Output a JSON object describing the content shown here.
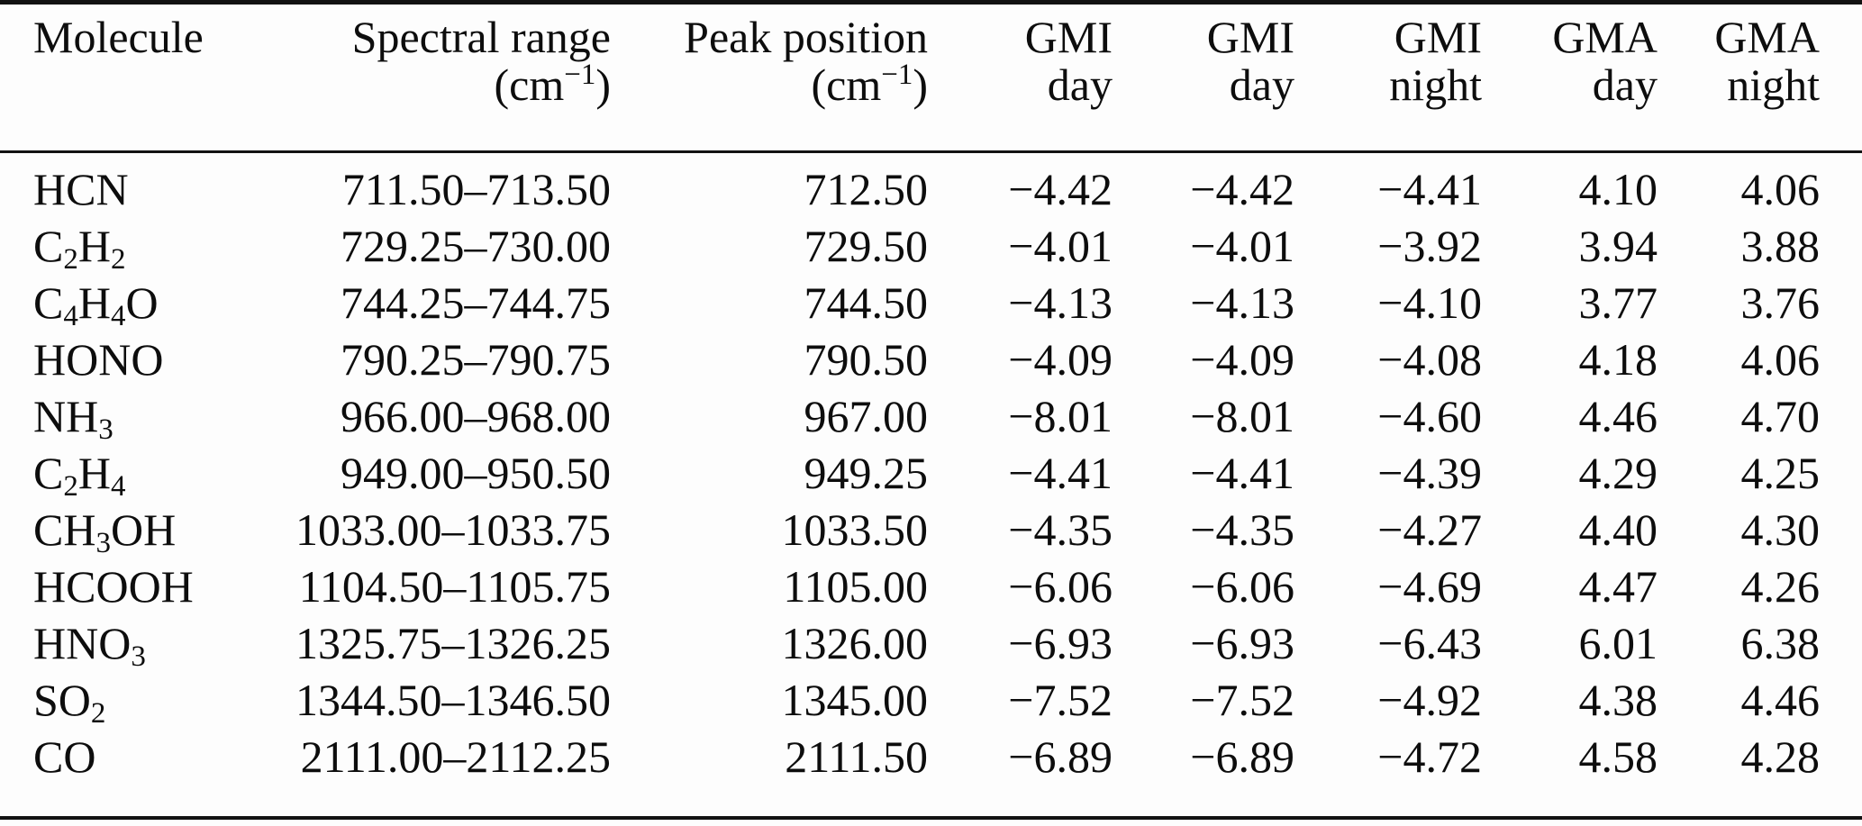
{
  "table": {
    "unit": {
      "prefix": "(cm",
      "superscript": "−1",
      "suffix": ")"
    },
    "columns": [
      {
        "line1": "Molecule",
        "line2": ""
      },
      {
        "line1": "Spectral range",
        "line2": "unit"
      },
      {
        "line1": "Peak position",
        "line2": "unit"
      },
      {
        "line1": "GMI",
        "line2": "day"
      },
      {
        "line1": "GMI",
        "line2": "day"
      },
      {
        "line1": "GMI",
        "line2": "night"
      },
      {
        "line1": "GMA",
        "line2": "day"
      },
      {
        "line1": "GMA",
        "line2": "night"
      }
    ],
    "rows": [
      [
        "HCN",
        "711.50–713.50",
        "712.50",
        "−4.42",
        "−4.42",
        "−4.41",
        "4.10",
        "4.06"
      ],
      [
        "C2H2",
        "729.25–730.00",
        "729.50",
        "−4.01",
        "−4.01",
        "−3.92",
        "3.94",
        "3.88"
      ],
      [
        "C4H4O",
        "744.25–744.75",
        "744.50",
        "−4.13",
        "−4.13",
        "−4.10",
        "3.77",
        "3.76"
      ],
      [
        "HONO",
        "790.25–790.75",
        "790.50",
        "−4.09",
        "−4.09",
        "−4.08",
        "4.18",
        "4.06"
      ],
      [
        "NH3",
        "966.00–968.00",
        "967.00",
        "−8.01",
        "−8.01",
        "−4.60",
        "4.46",
        "4.70"
      ],
      [
        "C2H4",
        "949.00–950.50",
        "949.25",
        "−4.41",
        "−4.41",
        "−4.39",
        "4.29",
        "4.25"
      ],
      [
        "CH3OH",
        "1033.00–1033.75",
        "1033.50",
        "−4.35",
        "−4.35",
        "−4.27",
        "4.40",
        "4.30"
      ],
      [
        "HCOOH",
        "1104.50–1105.75",
        "1105.00",
        "−6.06",
        "−6.06",
        "−4.69",
        "4.47",
        "4.26"
      ],
      [
        "HNO3",
        "1325.75–1326.25",
        "1326.00",
        "−6.93",
        "−6.93",
        "−6.43",
        "6.01",
        "6.38"
      ],
      [
        "SO2",
        "1344.50–1346.50",
        "1345.00",
        "−7.52",
        "−7.52",
        "−4.92",
        "4.38",
        "4.46"
      ],
      [
        "CO",
        "2111.00–2112.25",
        "2111.50",
        "−6.89",
        "−6.89",
        "−4.72",
        "4.58",
        "4.28"
      ]
    ]
  }
}
